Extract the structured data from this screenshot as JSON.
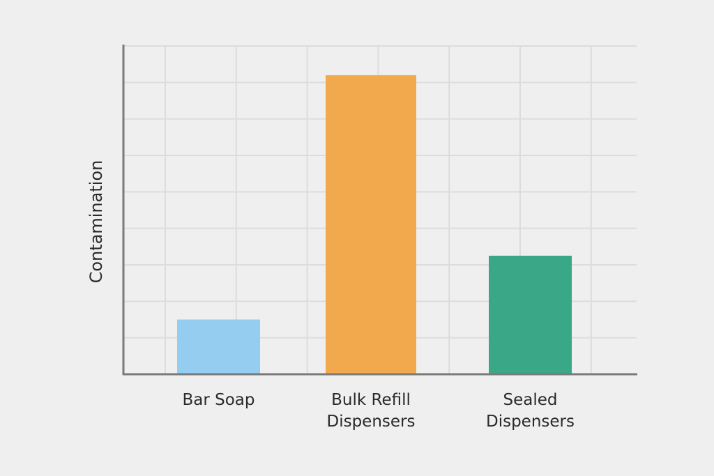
{
  "chart_data": {
    "type": "bar",
    "title": "",
    "xlabel": "",
    "ylabel": "Contamination",
    "categories": [
      [
        "Bar Soap"
      ],
      [
        "Bulk Refill",
        "Dispensers"
      ],
      [
        "Sealed",
        "Dispensers"
      ]
    ],
    "values": [
      1.5,
      8.2,
      3.25
    ],
    "colors": [
      "#95cdf0",
      "#f2a94e",
      "#3aa886"
    ],
    "ylim": [
      0,
      9
    ],
    "grid": true,
    "y_tick_labels_shown": false
  }
}
